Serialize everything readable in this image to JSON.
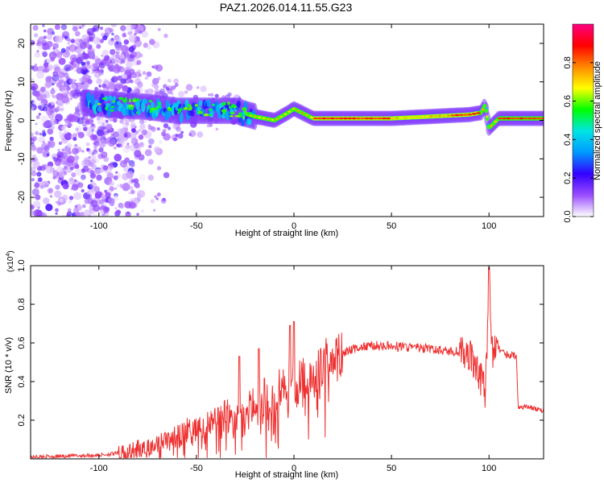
{
  "title": "PAZ1.2026.014.11.55.G23",
  "chart_data": [
    {
      "type": "heatmap",
      "title": "PAZ1.2026.014.11.55.G23",
      "xlabel": "Height of straight line (km)",
      "ylabel": "Frequency (Hz)",
      "xlim": [
        -135,
        128
      ],
      "ylim": [
        -25,
        25
      ],
      "xticks": [
        -100,
        -50,
        0,
        50,
        100
      ],
      "xtick_labels": [
        "-100",
        "-50",
        "0",
        "50",
        "100"
      ],
      "yticks": [
        -20,
        -10,
        0,
        10,
        20
      ],
      "ytick_labels": [
        "-20",
        "-10",
        "0",
        "10",
        "20"
      ],
      "ridge": {
        "description_points_x": [
          -105,
          -90,
          -75,
          -60,
          -45,
          -30,
          -20,
          -10,
          -3,
          0,
          10,
          30,
          50,
          70,
          90,
          96,
          98,
          100,
          105,
          115,
          128
        ],
        "description_points_y": [
          4.5,
          4,
          3.5,
          2.5,
          2.5,
          2.5,
          1,
          0,
          2,
          3,
          0.5,
          0.5,
          0.5,
          1,
          1.5,
          2,
          4,
          -2,
          0.5,
          0.5,
          0.5
        ]
      },
      "colorbar": {
        "label": "Normalized spectral amplitude",
        "range": [
          0,
          1
        ],
        "ticks": [
          0.0,
          0.2,
          0.4,
          0.6,
          0.8
        ],
        "tick_labels": [
          "0.0",
          "0.2",
          "0.4",
          "0.6",
          "0.8"
        ],
        "colors": [
          "#ffffff",
          "#9b4dff",
          "#3300ff",
          "#0099ff",
          "#00e5e5",
          "#00ff00",
          "#ffff00",
          "#ff8800",
          "#ff0000",
          "#ff0080"
        ]
      }
    },
    {
      "type": "line",
      "xlabel": "Height of straight line (km)",
      "ylabel": "SNR (10 * v/v)",
      "multiplier_label": "(x10",
      "multiplier_exp": "4",
      "multiplier_close": ")",
      "xlim": [
        -135,
        128
      ],
      "ylim": [
        0,
        1.0
      ],
      "xticks": [
        -100,
        -50,
        0,
        50,
        100
      ],
      "xtick_labels": [
        "-100",
        "-50",
        "0",
        "50",
        "100"
      ],
      "yticks": [
        0.2,
        0.4,
        0.6,
        0.8,
        1.0
      ],
      "ytick_labels": [
        "0.2",
        "0.4",
        "0.6",
        "0.8",
        "1.0"
      ],
      "color": "#ee3030",
      "series_envelope": {
        "x": [
          -135,
          -100,
          -90,
          -70,
          -50,
          -30,
          -20,
          -10,
          0,
          10,
          20,
          30,
          40,
          60,
          80,
          90,
          95,
          98,
          99,
          100,
          102,
          104,
          106,
          110,
          114,
          115,
          120,
          128
        ],
        "y": [
          0.01,
          0.02,
          0.03,
          0.08,
          0.17,
          0.25,
          0.29,
          0.36,
          0.4,
          0.47,
          0.53,
          0.57,
          0.59,
          0.58,
          0.56,
          0.55,
          0.45,
          0.35,
          0.6,
          0.95,
          0.5,
          0.62,
          0.55,
          0.54,
          0.53,
          0.27,
          0.27,
          0.25
        ]
      },
      "spikes": [
        {
          "x": -28,
          "y": 0.53
        },
        {
          "x": -18,
          "y": 0.57
        },
        {
          "x": 0,
          "y": 0.71
        },
        {
          "x": -2,
          "y": 0.69
        },
        {
          "x": 100,
          "y": 0.99
        }
      ]
    }
  ]
}
